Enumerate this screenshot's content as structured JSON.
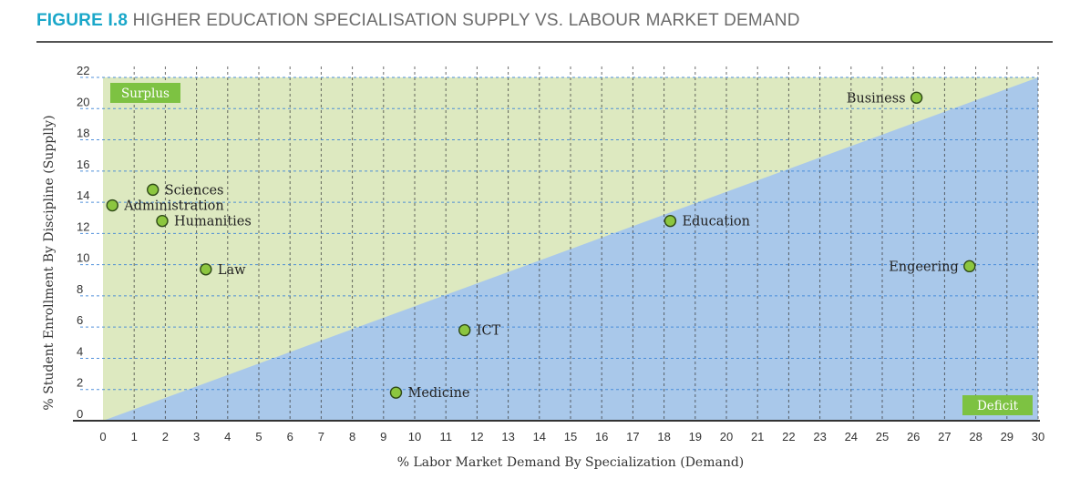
{
  "figure": {
    "number": "FIGURE I.8",
    "title": "HIGHER EDUCATION SPECIALISATION SUPPLY VS. LABOUR MARKET DEMAND"
  },
  "colors": {
    "surplus_area": "#dde9c0",
    "deficit_area": "#a9c8ea",
    "marker": "#8cc63f",
    "tag": "#7dc242",
    "grid_x": "#3a3a3a",
    "grid_y": "#3f86d8",
    "title_accent": "#1aa7c9"
  },
  "chart_data": {
    "type": "scatter",
    "xlabel": "% Labor Market Demand By Specialization (Demand)",
    "ylabel": "% Student Enrollment By Discipline (Supplly)",
    "xlim": [
      0,
      30
    ],
    "ylim": [
      0,
      22
    ],
    "x_ticks": [
      "0",
      "1",
      "2",
      "3",
      "4",
      "5",
      "6",
      "7",
      "8",
      "9",
      "10",
      "11",
      "12",
      "13",
      "14",
      "15",
      "16",
      "17",
      "18",
      "19",
      "20",
      "21",
      "22",
      "23",
      "24",
      "25",
      "26",
      "27",
      "28",
      "29",
      "30"
    ],
    "y_ticks": [
      "0",
      "2",
      "4",
      "6",
      "8",
      "10",
      "12",
      "14",
      "16",
      "18",
      "20",
      "22"
    ],
    "grid": true,
    "regions": [
      {
        "name": "Surplus",
        "placement": "top-left"
      },
      {
        "name": "Deficit",
        "placement": "bottom-right"
      }
    ],
    "points": [
      {
        "label": "Administration",
        "x": 0.3,
        "y": 13.8,
        "label_side": "right"
      },
      {
        "label": "Sciences",
        "x": 1.6,
        "y": 14.8,
        "label_side": "right"
      },
      {
        "label": "Humanities",
        "x": 1.9,
        "y": 12.8,
        "label_side": "right"
      },
      {
        "label": "Law",
        "x": 3.3,
        "y": 9.7,
        "label_side": "right"
      },
      {
        "label": "Medicine",
        "x": 9.4,
        "y": 1.8,
        "label_side": "right"
      },
      {
        "label": "ICT",
        "x": 11.6,
        "y": 5.8,
        "label_side": "right"
      },
      {
        "label": "Education",
        "x": 18.2,
        "y": 12.8,
        "label_side": "right"
      },
      {
        "label": "Business",
        "x": 26.1,
        "y": 20.7,
        "label_side": "left"
      },
      {
        "label": "Engeering",
        "x": 27.8,
        "y": 9.9,
        "label_side": "left"
      }
    ]
  }
}
